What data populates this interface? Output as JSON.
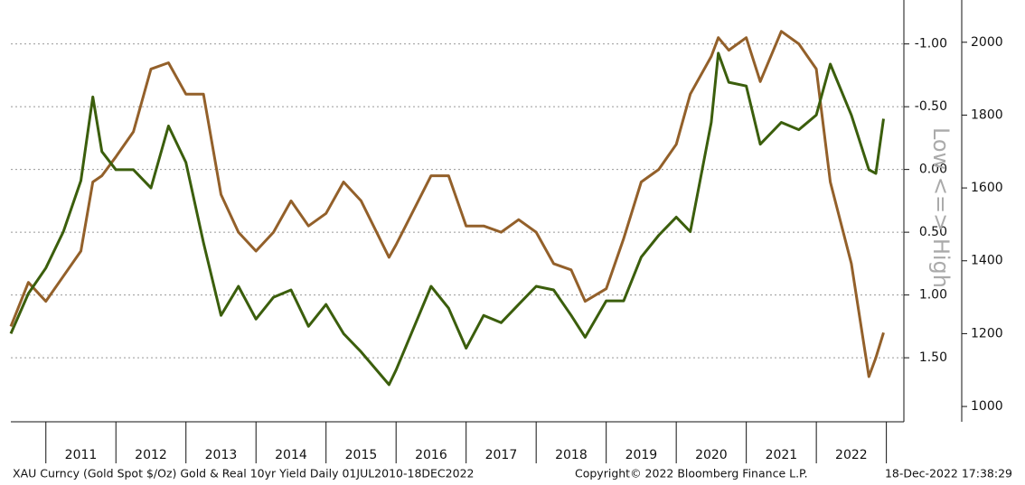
{
  "chart_data": {
    "type": "line",
    "axis_note": "Low <=> High",
    "footer": {
      "left": "XAU Curncy (Gold Spot  $/Oz) Gold & Real 10yr Yield  Daily 01JUL2010-18DEC2022",
      "center": "Copyright© 2022 Bloomberg Finance L.P.",
      "right": "18-Dec-2022 17:38:29"
    },
    "x": [
      2010.5,
      2010.75,
      2011.0,
      2011.25,
      2011.5,
      2011.67,
      2011.8,
      2012.0,
      2012.25,
      2012.5,
      2012.75,
      2013.0,
      2013.25,
      2013.5,
      2013.75,
      2014.0,
      2014.25,
      2014.5,
      2014.75,
      2015.0,
      2015.25,
      2015.5,
      2015.9,
      2016.0,
      2016.5,
      2016.75,
      2017.0,
      2017.25,
      2017.5,
      2017.75,
      2018.0,
      2018.25,
      2018.5,
      2018.7,
      2019.0,
      2019.25,
      2019.5,
      2019.75,
      2020.0,
      2020.2,
      2020.5,
      2020.6,
      2020.75,
      2021.0,
      2021.2,
      2021.5,
      2021.75,
      2022.0,
      2022.2,
      2022.5,
      2022.75,
      2022.85,
      2022.96
    ],
    "xlim": [
      2010.5,
      2023.25
    ],
    "xticks": [
      2011,
      2012,
      2013,
      2014,
      2015,
      2016,
      2017,
      2018,
      2019,
      2020,
      2021,
      2022,
      2023
    ],
    "year_labels": [
      "2011",
      "2012",
      "2013",
      "2014",
      "2015",
      "2016",
      "2017",
      "2018",
      "2019",
      "2020",
      "2021",
      "2022"
    ],
    "ylim": [
      -1.35,
      2.01
    ],
    "y_inverted": true,
    "yticks": [
      {
        "value": -1.0,
        "label": "-1.00"
      },
      {
        "value": -0.5,
        "label": "-0.50"
      },
      {
        "value": 0.0,
        "label": "0.00"
      },
      {
        "value": 0.5,
        "label": "0.50"
      },
      {
        "value": 1.0,
        "label": "1.00"
      },
      {
        "value": 1.5,
        "label": "1.50"
      }
    ],
    "y2lim": [
      958,
      2116
    ],
    "y2ticks": [
      1000,
      1200,
      1400,
      1600,
      1800,
      2000
    ],
    "grid": true,
    "series": [
      {
        "name": "Gold Spot",
        "color": "#3b5e0c",
        "axis": "y2",
        "values": [
          1200,
          1310,
          1380,
          1480,
          1620,
          1850,
          1700,
          1650,
          1650,
          1600,
          1770,
          1670,
          1450,
          1250,
          1330,
          1240,
          1300,
          1320,
          1220,
          1280,
          1200,
          1150,
          1060,
          1100,
          1330,
          1270,
          1160,
          1250,
          1230,
          1280,
          1330,
          1320,
          1250,
          1190,
          1290,
          1290,
          1410,
          1470,
          1520,
          1480,
          1780,
          1970,
          1890,
          1880,
          1720,
          1780,
          1760,
          1800,
          1940,
          1800,
          1650,
          1640,
          1790
        ]
      },
      {
        "name": "Real 10yr Yield",
        "color": "#93602a",
        "values": [
          1.25,
          0.9,
          1.05,
          0.85,
          0.65,
          0.1,
          0.05,
          -0.1,
          -0.3,
          -0.8,
          -0.85,
          -0.6,
          -0.6,
          0.2,
          0.5,
          0.65,
          0.5,
          0.25,
          0.45,
          0.35,
          0.1,
          0.25,
          0.7,
          0.6,
          0.05,
          0.05,
          0.45,
          0.45,
          0.5,
          0.4,
          0.5,
          0.75,
          0.8,
          1.05,
          0.95,
          0.55,
          0.1,
          0.0,
          -0.2,
          -0.6,
          -0.9,
          -1.05,
          -0.95,
          -1.05,
          -0.7,
          -1.1,
          -1.0,
          -0.8,
          0.1,
          0.75,
          1.65,
          1.5,
          1.3
        ]
      }
    ]
  }
}
